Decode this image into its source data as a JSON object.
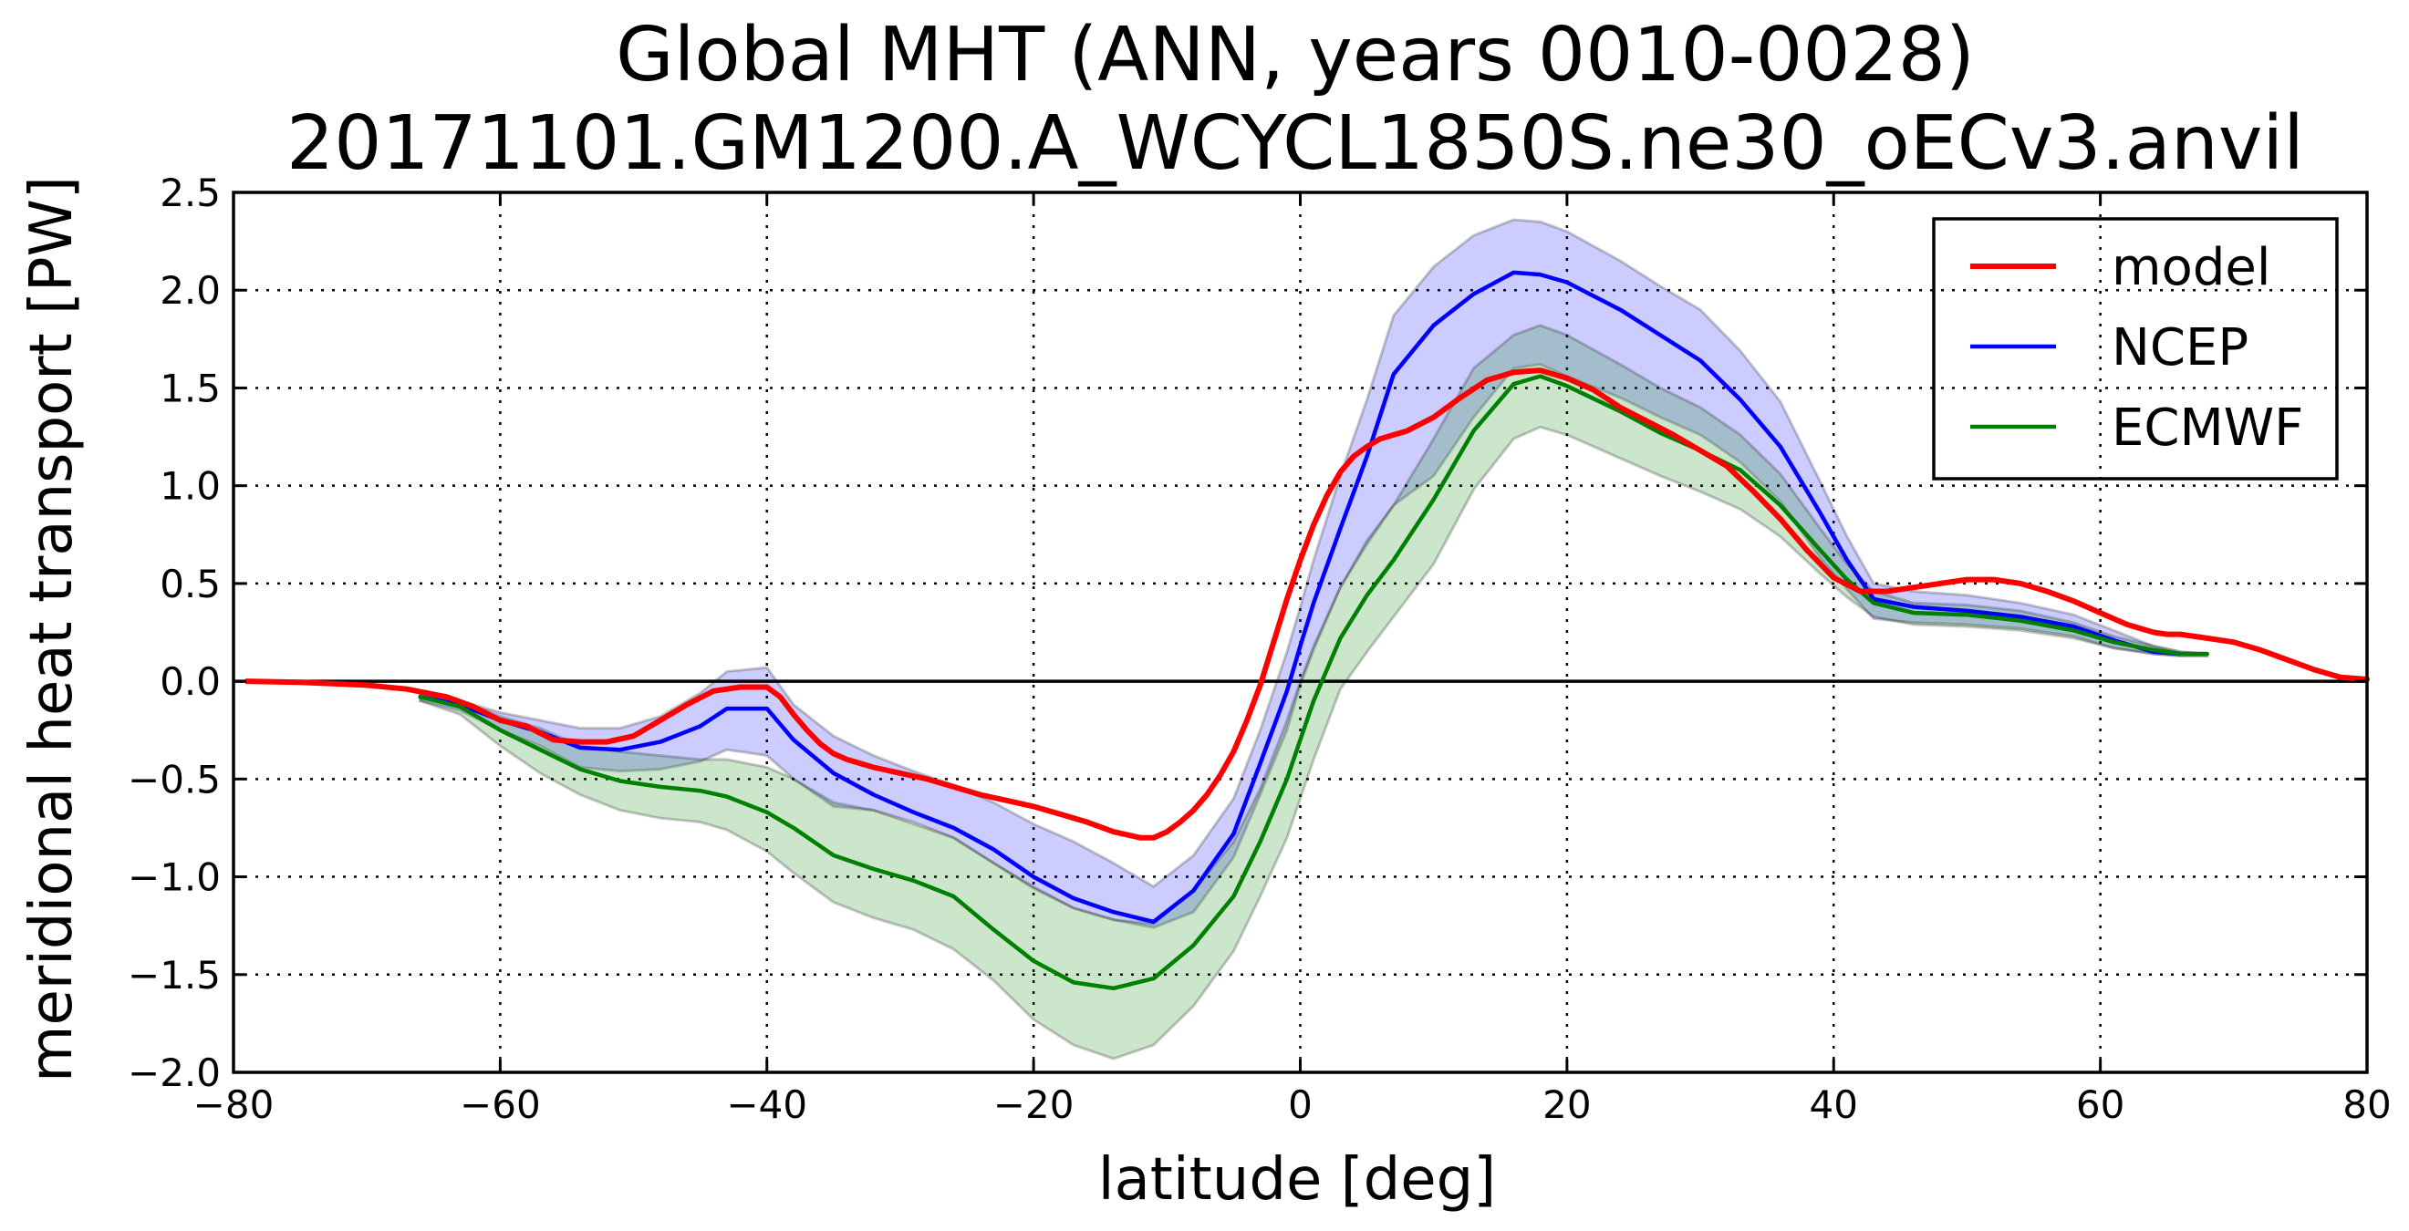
{
  "chart_data": {
    "type": "line",
    "title": "Global MHT (ANN, years 0010-0028)",
    "subtitle": "20171101.GM1200.A_WCYCL1850S.ne30_oECv3.anvil",
    "xlabel": "latitude [deg]",
    "ylabel": "meridional heat transport [PW]",
    "xlim": [
      -80,
      80
    ],
    "ylim": [
      -2.0,
      2.5
    ],
    "xticks": [
      -80,
      -60,
      -40,
      -20,
      0,
      20,
      40,
      60,
      80
    ],
    "xtick_labels": [
      "−80",
      "−60",
      "−40",
      "−20",
      "0",
      "20",
      "40",
      "60",
      "80"
    ],
    "yticks": [
      -2.0,
      -1.5,
      -1.0,
      -0.5,
      0.0,
      0.5,
      1.0,
      1.5,
      2.0,
      2.5
    ],
    "ytick_labels": [
      "−2.0",
      "−1.5",
      "−1.0",
      "−0.5",
      "0.0",
      "0.5",
      "1.0",
      "1.5",
      "2.0",
      "2.5"
    ],
    "grid": true,
    "legend_position": "top-right",
    "series": [
      {
        "name": "model",
        "color": "#ff0000",
        "x": [
          -79,
          -75,
          -70,
          -67,
          -64,
          -62,
          -60,
          -58,
          -56,
          -54,
          -52,
          -50,
          -48,
          -46,
          -44,
          -42,
          -40,
          -39,
          -38,
          -37,
          -36,
          -35,
          -34,
          -32,
          -30,
          -28,
          -26,
          -24,
          -22,
          -20,
          -18,
          -16,
          -14,
          -12,
          -11,
          -10,
          -9,
          -8,
          -7,
          -6,
          -5,
          -4,
          -3,
          -2,
          -1,
          0,
          1,
          2,
          3,
          4,
          5,
          6,
          8,
          10,
          12,
          14,
          16,
          18,
          20,
          22,
          24,
          26,
          28,
          30,
          32,
          34,
          36,
          38,
          40,
          42,
          44,
          46,
          48,
          50,
          52,
          54,
          56,
          58,
          60,
          62,
          64,
          65,
          66,
          68,
          70,
          72,
          74,
          76,
          78,
          80
        ],
        "y": [
          0.0,
          -0.005,
          -0.02,
          -0.04,
          -0.08,
          -0.13,
          -0.2,
          -0.23,
          -0.3,
          -0.31,
          -0.31,
          -0.28,
          -0.2,
          -0.12,
          -0.05,
          -0.03,
          -0.03,
          -0.08,
          -0.17,
          -0.25,
          -0.32,
          -0.37,
          -0.4,
          -0.44,
          -0.47,
          -0.5,
          -0.54,
          -0.58,
          -0.61,
          -0.64,
          -0.68,
          -0.72,
          -0.77,
          -0.8,
          -0.8,
          -0.77,
          -0.72,
          -0.66,
          -0.58,
          -0.48,
          -0.36,
          -0.2,
          -0.02,
          0.2,
          0.42,
          0.62,
          0.8,
          0.95,
          1.07,
          1.15,
          1.2,
          1.24,
          1.28,
          1.35,
          1.45,
          1.54,
          1.58,
          1.59,
          1.55,
          1.49,
          1.4,
          1.33,
          1.26,
          1.18,
          1.1,
          0.97,
          0.83,
          0.67,
          0.53,
          0.46,
          0.46,
          0.48,
          0.5,
          0.52,
          0.52,
          0.5,
          0.46,
          0.41,
          0.35,
          0.29,
          0.25,
          0.24,
          0.24,
          0.22,
          0.2,
          0.16,
          0.11,
          0.06,
          0.02,
          0.01
        ]
      },
      {
        "name": "NCEP",
        "color": "#0000ff",
        "x": [
          -66,
          -63,
          -60,
          -57,
          -54,
          -51,
          -48,
          -45,
          -43,
          -40,
          -38,
          -35,
          -32,
          -29,
          -26,
          -23,
          -20,
          -17,
          -14,
          -11,
          -8,
          -5,
          -3,
          -1,
          0,
          1,
          3,
          5,
          7,
          10,
          13,
          16,
          18,
          20,
          24,
          27,
          30,
          33,
          36,
          39,
          41,
          43,
          46,
          50,
          54,
          58,
          61,
          64,
          66,
          68
        ],
        "y": [
          -0.08,
          -0.12,
          -0.2,
          -0.26,
          -0.34,
          -0.35,
          -0.31,
          -0.23,
          -0.14,
          -0.14,
          -0.3,
          -0.47,
          -0.58,
          -0.67,
          -0.75,
          -0.86,
          -1.0,
          -1.11,
          -1.18,
          -1.23,
          -1.07,
          -0.78,
          -0.42,
          -0.05,
          0.18,
          0.4,
          0.78,
          1.15,
          1.57,
          1.82,
          1.98,
          2.09,
          2.08,
          2.04,
          1.9,
          1.77,
          1.64,
          1.44,
          1.2,
          0.86,
          0.62,
          0.42,
          0.38,
          0.36,
          0.33,
          0.28,
          0.21,
          0.15,
          0.14,
          0.14
        ]
      },
      {
        "name": "ECMWF",
        "color": "#008000",
        "x": [
          -66,
          -63,
          -60,
          -57,
          -54,
          -51,
          -48,
          -45,
          -43,
          -40,
          -38,
          -35,
          -32,
          -29,
          -26,
          -23,
          -20,
          -17,
          -14,
          -11,
          -8,
          -5,
          -3,
          -1,
          0,
          1,
          3,
          5,
          7,
          10,
          13,
          16,
          18,
          20,
          24,
          27,
          30,
          33,
          36,
          39,
          41,
          43,
          46,
          50,
          54,
          58,
          61,
          64,
          66,
          68
        ],
        "y": [
          -0.08,
          -0.13,
          -0.25,
          -0.35,
          -0.45,
          -0.51,
          -0.54,
          -0.56,
          -0.59,
          -0.67,
          -0.75,
          -0.89,
          -0.96,
          -1.02,
          -1.1,
          -1.27,
          -1.43,
          -1.54,
          -1.57,
          -1.52,
          -1.35,
          -1.1,
          -0.82,
          -0.5,
          -0.3,
          -0.1,
          0.22,
          0.44,
          0.62,
          0.93,
          1.28,
          1.52,
          1.56,
          1.51,
          1.38,
          1.27,
          1.18,
          1.08,
          0.9,
          0.67,
          0.52,
          0.4,
          0.35,
          0.34,
          0.31,
          0.26,
          0.2,
          0.16,
          0.14,
          0.14
        ]
      }
    ],
    "bands": [
      {
        "series": "NCEP",
        "color": "#0000ff",
        "x": [
          -66,
          -63,
          -60,
          -57,
          -54,
          -51,
          -48,
          -45,
          -43,
          -40,
          -38,
          -35,
          -32,
          -29,
          -26,
          -23,
          -20,
          -17,
          -14,
          -11,
          -8,
          -5,
          -3,
          -1,
          0,
          1,
          3,
          5,
          7,
          10,
          13,
          16,
          18,
          20,
          24,
          27,
          30,
          33,
          36,
          39,
          41,
          43,
          46,
          50,
          54,
          58,
          61,
          64,
          66,
          68
        ],
        "upper": [
          -0.07,
          -0.1,
          -0.16,
          -0.2,
          -0.24,
          -0.24,
          -0.18,
          -0.06,
          0.05,
          0.07,
          -0.12,
          -0.28,
          -0.38,
          -0.46,
          -0.53,
          -0.62,
          -0.73,
          -0.82,
          -0.93,
          -1.05,
          -0.89,
          -0.6,
          -0.25,
          0.15,
          0.38,
          0.62,
          1.05,
          1.44,
          1.87,
          2.12,
          2.28,
          2.36,
          2.35,
          2.3,
          2.15,
          2.02,
          1.9,
          1.69,
          1.43,
          1.02,
          0.74,
          0.5,
          0.46,
          0.44,
          0.4,
          0.34,
          0.26,
          0.18,
          0.15,
          0.14
        ],
        "lower": [
          -0.1,
          -0.15,
          -0.25,
          -0.33,
          -0.44,
          -0.46,
          -0.45,
          -0.41,
          -0.35,
          -0.38,
          -0.5,
          -0.64,
          -0.66,
          -0.72,
          -0.8,
          -0.93,
          -1.06,
          -1.16,
          -1.22,
          -1.26,
          -1.18,
          -0.9,
          -0.58,
          -0.25,
          -0.02,
          0.16,
          0.48,
          0.7,
          0.9,
          1.05,
          1.35,
          1.6,
          1.62,
          1.56,
          1.45,
          1.35,
          1.26,
          1.12,
          0.92,
          0.63,
          0.47,
          0.32,
          0.3,
          0.29,
          0.27,
          0.23,
          0.17,
          0.14,
          0.13,
          0.13
        ]
      },
      {
        "series": "ECMWF",
        "color": "#008000",
        "x": [
          -66,
          -63,
          -60,
          -57,
          -54,
          -51,
          -48,
          -45,
          -43,
          -40,
          -38,
          -35,
          -32,
          -29,
          -26,
          -23,
          -20,
          -17,
          -14,
          -11,
          -8,
          -5,
          -3,
          -1,
          0,
          1,
          3,
          5,
          7,
          10,
          13,
          16,
          18,
          20,
          24,
          27,
          30,
          33,
          36,
          39,
          41,
          43,
          46,
          50,
          54,
          58,
          61,
          64,
          66,
          68
        ],
        "upper": [
          -0.07,
          -0.1,
          -0.18,
          -0.24,
          -0.33,
          -0.36,
          -0.38,
          -0.4,
          -0.4,
          -0.44,
          -0.5,
          -0.62,
          -0.66,
          -0.73,
          -0.8,
          -0.93,
          -1.05,
          -1.16,
          -1.22,
          -1.24,
          -1.07,
          -0.82,
          -0.55,
          -0.2,
          0.0,
          0.18,
          0.48,
          0.72,
          0.9,
          1.24,
          1.6,
          1.77,
          1.82,
          1.77,
          1.62,
          1.5,
          1.4,
          1.26,
          1.06,
          0.78,
          0.6,
          0.46,
          0.4,
          0.39,
          0.36,
          0.3,
          0.23,
          0.18,
          0.15,
          0.14
        ],
        "lower": [
          -0.1,
          -0.17,
          -0.33,
          -0.47,
          -0.58,
          -0.66,
          -0.7,
          -0.72,
          -0.76,
          -0.87,
          -0.98,
          -1.13,
          -1.21,
          -1.27,
          -1.37,
          -1.53,
          -1.73,
          -1.86,
          -1.93,
          -1.86,
          -1.66,
          -1.38,
          -1.1,
          -0.8,
          -0.6,
          -0.4,
          -0.04,
          0.15,
          0.33,
          0.6,
          0.98,
          1.24,
          1.3,
          1.26,
          1.14,
          1.05,
          0.97,
          0.88,
          0.74,
          0.55,
          0.43,
          0.33,
          0.29,
          0.28,
          0.26,
          0.22,
          0.17,
          0.14,
          0.13,
          0.13
        ]
      }
    ]
  }
}
